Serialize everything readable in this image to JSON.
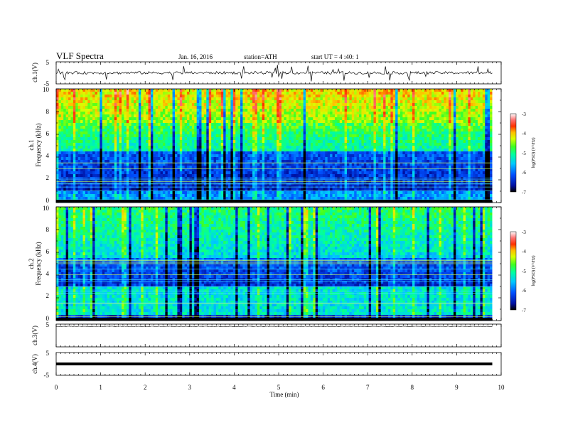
{
  "header": {
    "title": "VLF Spectra",
    "date": "Jan. 16, 2016",
    "station": "station=ATH",
    "start": "start  UT =  4 :40: 1"
  },
  "chart_data": [
    {
      "type": "line",
      "ylabel": "ch.1(V)",
      "yticks": [
        "5",
        "-5"
      ],
      "ylim": [
        -5,
        5
      ],
      "baseline": 0,
      "trace": "noisy"
    },
    {
      "type": "heatmap",
      "ylabel_top": "ch.1",
      "ylabel": "Frequency (kHz)",
      "yticks": [
        "10",
        "8",
        "6",
        "4",
        "2",
        "0"
      ],
      "ylim": [
        0,
        10
      ],
      "colorbar": {
        "label": "log(PSD) (V²/Hz)",
        "ticks": [
          "-3",
          "-4",
          "-5",
          "-6",
          "-7"
        ],
        "range": [
          -7,
          -3
        ]
      }
    },
    {
      "type": "heatmap",
      "ylabel_top": "ch.2",
      "ylabel": "Frequency (kHz)",
      "yticks": [
        "10",
        "8",
        "6",
        "4",
        "2",
        "0"
      ],
      "ylim": [
        0,
        10
      ],
      "colorbar": {
        "label": "log(PSD) (V²/Hz)",
        "ticks": [
          "-3",
          "-4",
          "-5",
          "-6",
          "-7"
        ],
        "range": [
          -7,
          -3
        ]
      }
    },
    {
      "type": "line",
      "ylabel": "ch.3(V)",
      "yticks": [
        "5"
      ],
      "ylim": [
        -5,
        5
      ],
      "baseline": 4,
      "trace": "flat"
    },
    {
      "type": "line",
      "ylabel": "ch.4(V)",
      "yticks": [
        "5",
        "-5"
      ],
      "ylim": [
        -5,
        5
      ],
      "baseline": 0,
      "trace": "thick"
    }
  ],
  "xaxis": {
    "label": "Time (min)",
    "ticks": [
      "0",
      "1",
      "2",
      "3",
      "4",
      "5",
      "6",
      "7",
      "8",
      "9",
      "10"
    ],
    "xlim": [
      0,
      10
    ],
    "data_end": 9.8
  }
}
